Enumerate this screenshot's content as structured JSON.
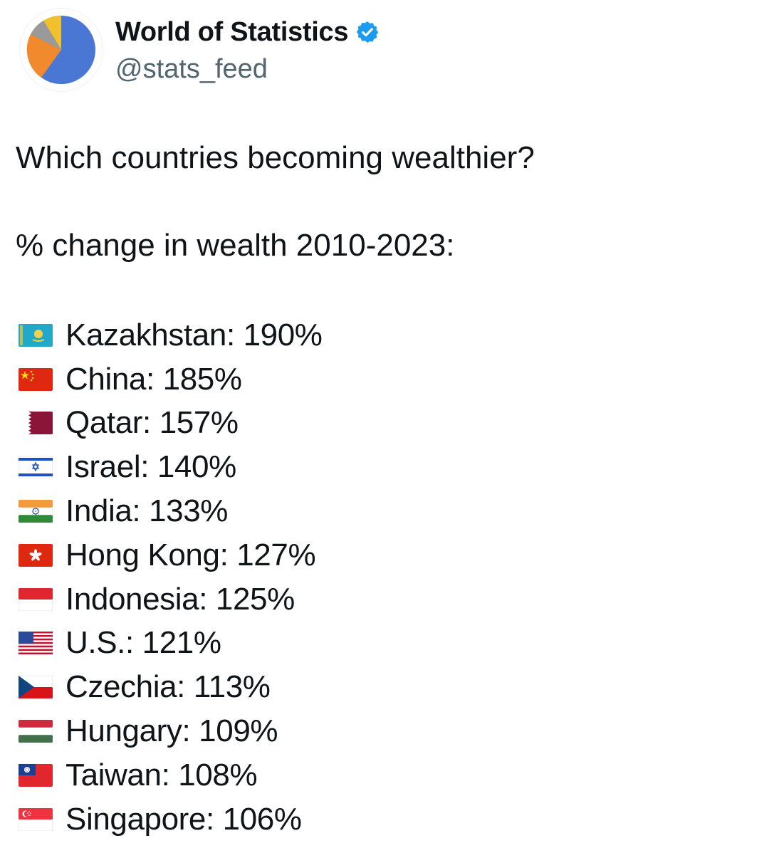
{
  "author": {
    "display_name": "World of Statistics",
    "handle": "@stats_feed",
    "verified": true,
    "avatar_icon": "pie-chart-avatar",
    "verified_color": "#1d9bf0"
  },
  "tweet": {
    "question": "Which countries becoming wealthier?",
    "subtitle": "% change in wealth 2010-2023:",
    "items": [
      {
        "country": "Kazakhstan",
        "value": "190%",
        "flag": "kazakhstan-flag-icon"
      },
      {
        "country": "China",
        "value": "185%",
        "flag": "china-flag-icon"
      },
      {
        "country": "Qatar",
        "value": "157%",
        "flag": "qatar-flag-icon"
      },
      {
        "country": "Israel",
        "value": "140%",
        "flag": "israel-flag-icon"
      },
      {
        "country": "India",
        "value": "133%",
        "flag": "india-flag-icon"
      },
      {
        "country": "Hong Kong",
        "value": "127%",
        "flag": "hong-kong-flag-icon"
      },
      {
        "country": "Indonesia",
        "value": "125%",
        "flag": "indonesia-flag-icon"
      },
      {
        "country": "U.S.",
        "value": "121%",
        "flag": "us-flag-icon"
      },
      {
        "country": "Czechia",
        "value": "113%",
        "flag": "czechia-flag-icon"
      },
      {
        "country": "Hungary",
        "value": "109%",
        "flag": "hungary-flag-icon"
      },
      {
        "country": "Taiwan",
        "value": "108%",
        "flag": "taiwan-flag-icon"
      },
      {
        "country": "Singapore",
        "value": "106%",
        "flag": "singapore-flag-icon"
      }
    ]
  }
}
